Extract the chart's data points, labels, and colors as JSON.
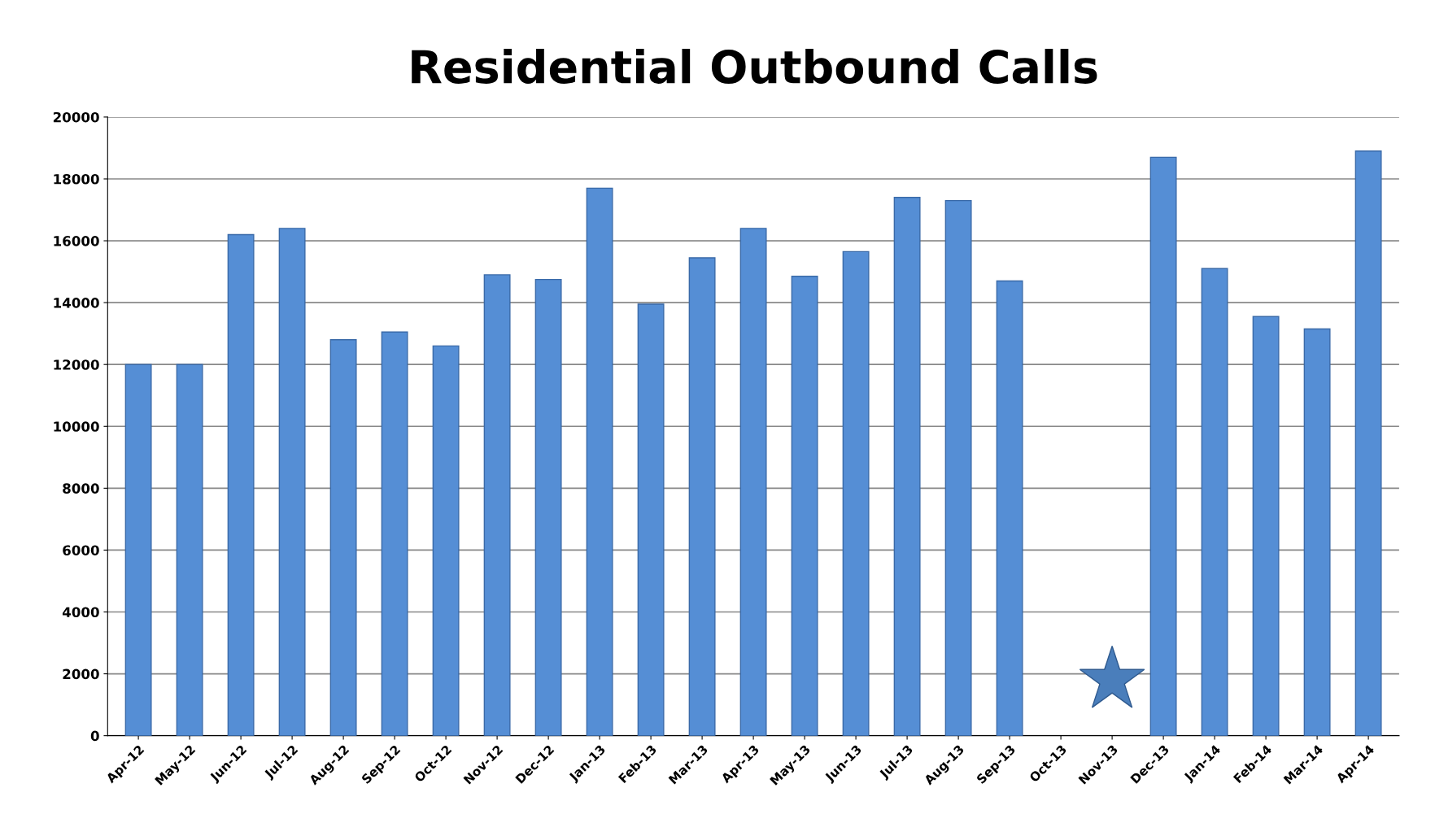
{
  "chart_data": {
    "type": "bar",
    "title": "Residential Outbound Calls",
    "categories": [
      "Apr-12",
      "May-12",
      "Jun-12",
      "Jul-12",
      "Aug-12",
      "Sep-12",
      "Oct-12",
      "Nov-12",
      "Dec-12",
      "Jan-13",
      "Feb-13",
      "Mar-13",
      "Apr-13",
      "May-13",
      "Jun-13",
      "Jul-13",
      "Aug-13",
      "Sep-13",
      "Oct-13",
      "Nov-13",
      "Dec-13",
      "Jan-14",
      "Feb-14",
      "Mar-14",
      "Apr-14"
    ],
    "values": [
      12000,
      12000,
      16200,
      16400,
      12800,
      13050,
      12600,
      14900,
      14750,
      17700,
      13950,
      15450,
      16400,
      14850,
      15650,
      17400,
      17300,
      14700,
      null,
      null,
      18700,
      15100,
      13550,
      13150,
      18900
    ],
    "color": "#558ed5",
    "ylim": [
      0,
      20000
    ],
    "yticks": [
      0,
      2000,
      4000,
      6000,
      8000,
      10000,
      12000,
      14000,
      16000,
      18000,
      20000
    ],
    "grid": "y"
  }
}
